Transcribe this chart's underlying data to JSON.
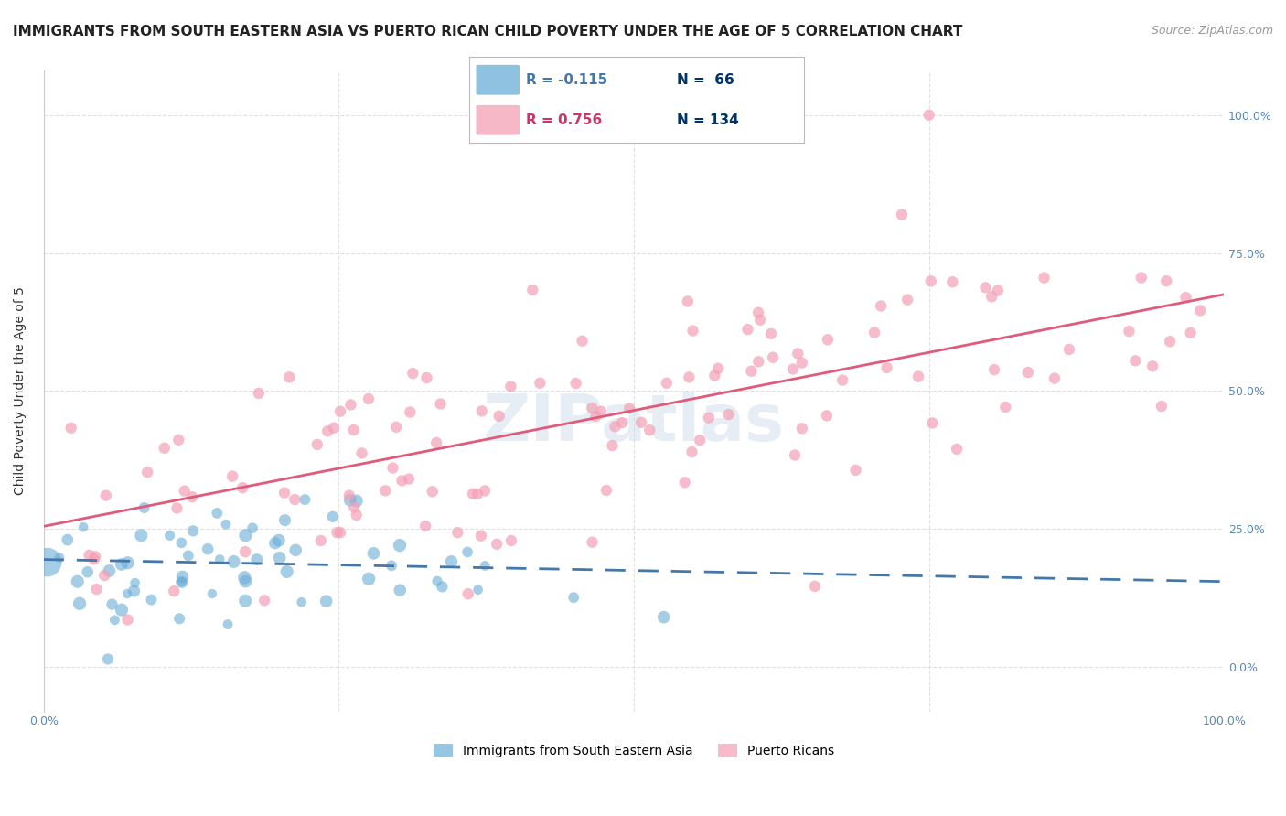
{
  "title": "IMMIGRANTS FROM SOUTH EASTERN ASIA VS PUERTO RICAN CHILD POVERTY UNDER THE AGE OF 5 CORRELATION CHART",
  "source": "Source: ZipAtlas.com",
  "ylabel": "Child Poverty Under the Age of 5",
  "yticks": [
    "0.0%",
    "25.0%",
    "50.0%",
    "75.0%",
    "100.0%"
  ],
  "ytick_vals": [
    0.0,
    0.25,
    0.5,
    0.75,
    1.0
  ],
  "xlim": [
    0.0,
    1.0
  ],
  "ylim": [
    -0.08,
    1.08
  ],
  "watermark": "ZIPatlas",
  "blue_color": "#6aaed6",
  "pink_color": "#f4a0b5",
  "blue_line_color": "#4477aa",
  "pink_line_color": "#e05a7a",
  "background_color": "#ffffff",
  "grid_color": "#dddddd",
  "title_fontsize": 11,
  "axis_label_fontsize": 10,
  "tick_fontsize": 9,
  "legend_fontsize": 11,
  "blue_intercept": 0.195,
  "blue_slope": -0.04,
  "pink_intercept": 0.255,
  "pink_slope": 0.42
}
